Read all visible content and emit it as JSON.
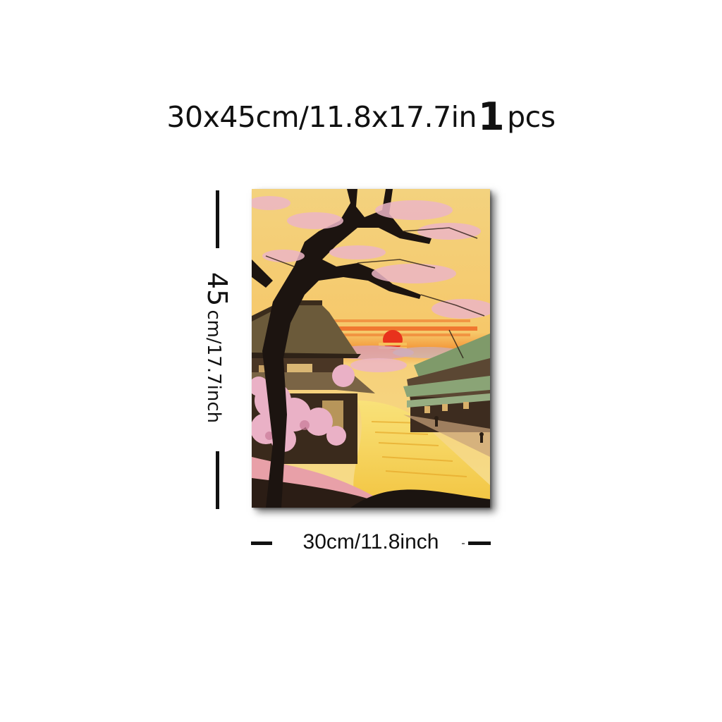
{
  "product": {
    "size_line": {
      "dimensions": "30x45cm/11.8x17.7in",
      "quantity": "1",
      "unit": "pcs"
    }
  },
  "dimensions": {
    "height_value": "45",
    "height_unit": "cm/17.7inch",
    "width": "30cm/11.8inch"
  },
  "artwork": {
    "subject": "cherry-blossom-village-sunset",
    "colors": {
      "sky_top": "#f4d58a",
      "sky_glow": "#f7b24a",
      "sun": "#e8321c",
      "sunset_band": "#e8601e",
      "blossom": "#e9a9c0",
      "tree": "#1c1410",
      "roof": "#6b5a3a",
      "roof_green": "#7f9a6a",
      "water": "#f6d64a"
    }
  }
}
